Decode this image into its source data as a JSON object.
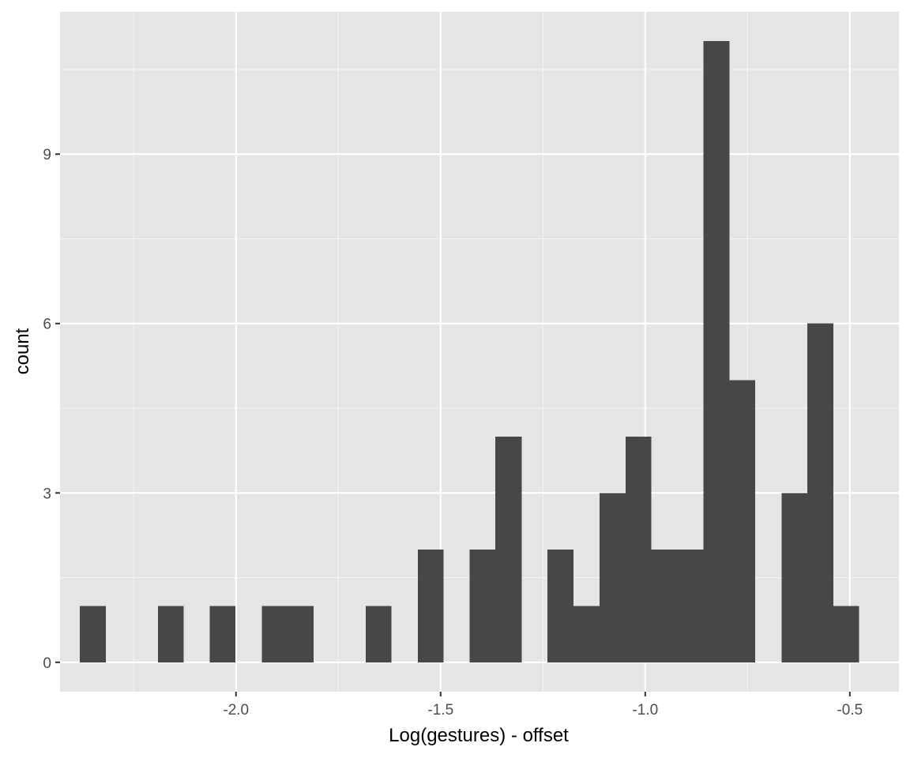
{
  "chart_data": {
    "type": "histogram",
    "title": "",
    "xlabel": "Log(gestures) - offset",
    "ylabel": "count",
    "xlim": [
      -2.43,
      -0.38
    ],
    "ylim": [
      -0.52,
      11.52
    ],
    "bin_width": 0.0635,
    "x_ticks": [
      -2.0,
      -1.5,
      -1.0,
      -0.5
    ],
    "x_tick_labels": [
      "-2.0",
      "-1.5",
      "-1.0",
      "-0.5"
    ],
    "y_ticks": [
      0,
      3,
      6,
      9
    ],
    "y_tick_labels": [
      "0",
      "3",
      "6",
      "9"
    ],
    "bins": [
      {
        "start": -2.382,
        "end": -2.318,
        "count": 1
      },
      {
        "start": -2.318,
        "end": -2.255,
        "count": 0
      },
      {
        "start": -2.255,
        "end": -2.191,
        "count": 0
      },
      {
        "start": -2.191,
        "end": -2.128,
        "count": 1
      },
      {
        "start": -2.128,
        "end": -2.064,
        "count": 0
      },
      {
        "start": -2.064,
        "end": -2.001,
        "count": 1
      },
      {
        "start": -2.001,
        "end": -1.937,
        "count": 0
      },
      {
        "start": -1.937,
        "end": -1.874,
        "count": 1
      },
      {
        "start": -1.874,
        "end": -1.81,
        "count": 1
      },
      {
        "start": -1.81,
        "end": -1.747,
        "count": 0
      },
      {
        "start": -1.747,
        "end": -1.683,
        "count": 0
      },
      {
        "start": -1.683,
        "end": -1.62,
        "count": 1
      },
      {
        "start": -1.62,
        "end": -1.556,
        "count": 0
      },
      {
        "start": -1.556,
        "end": -1.493,
        "count": 2
      },
      {
        "start": -1.493,
        "end": -1.429,
        "count": 0
      },
      {
        "start": -1.429,
        "end": -1.366,
        "count": 2
      },
      {
        "start": -1.366,
        "end": -1.302,
        "count": 4
      },
      {
        "start": -1.302,
        "end": -1.239,
        "count": 0
      },
      {
        "start": -1.239,
        "end": -1.175,
        "count": 2
      },
      {
        "start": -1.175,
        "end": -1.112,
        "count": 1
      },
      {
        "start": -1.112,
        "end": -1.048,
        "count": 3
      },
      {
        "start": -1.048,
        "end": -0.985,
        "count": 4
      },
      {
        "start": -0.985,
        "end": -0.921,
        "count": 2
      },
      {
        "start": -0.921,
        "end": -0.858,
        "count": 2
      },
      {
        "start": -0.858,
        "end": -0.794,
        "count": 11
      },
      {
        "start": -0.794,
        "end": -0.731,
        "count": 5
      },
      {
        "start": -0.731,
        "end": -0.667,
        "count": 0
      },
      {
        "start": -0.667,
        "end": -0.604,
        "count": 3
      },
      {
        "start": -0.604,
        "end": -0.54,
        "count": 6
      },
      {
        "start": -0.54,
        "end": -0.477,
        "count": 1
      }
    ],
    "grid": true,
    "legend": "none",
    "colors": {
      "panel_background": "#e5e5e5",
      "grid_major": "#ffffff",
      "grid_minor": "#f2f2f2",
      "bar_fill": "#474747",
      "tick_mark": "#333333"
    }
  }
}
